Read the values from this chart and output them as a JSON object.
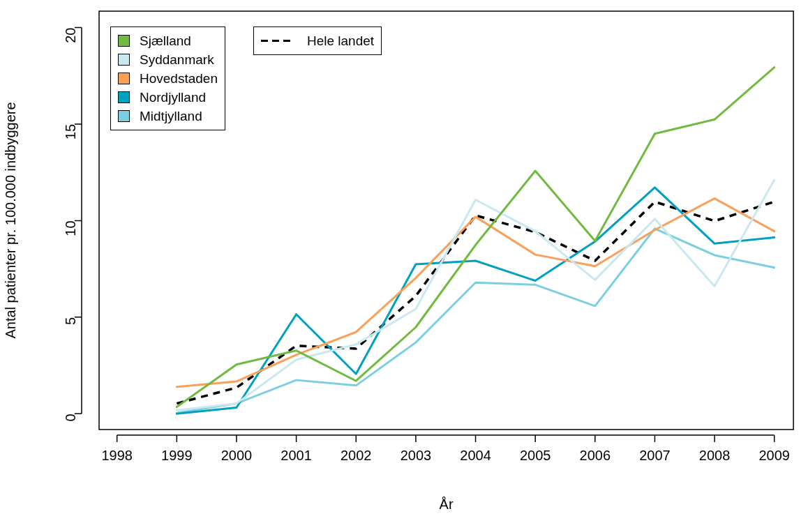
{
  "chart_data": {
    "type": "line",
    "xlabel": "År",
    "ylabel": "Antal patienter pr. 100.000 indbyggere",
    "x": [
      1999,
      2000,
      2001,
      2002,
      2003,
      2004,
      2005,
      2006,
      2007,
      2008,
      2009
    ],
    "xlim": [
      1997.7,
      2009.32
    ],
    "xticks": [
      1998,
      1999,
      2000,
      2001,
      2002,
      2003,
      2004,
      2005,
      2006,
      2007,
      2008,
      2009
    ],
    "ylim": [
      -0.82,
      20.85
    ],
    "yticks": [
      0,
      5,
      10,
      15,
      20
    ],
    "grid": false,
    "legend": "top left",
    "marker": "none",
    "series": [
      {
        "name": "Sjælland",
        "color": "#6fba3f",
        "values": [
          0.35,
          2.55,
          3.27,
          1.7,
          4.48,
          8.74,
          12.58,
          8.95,
          14.5,
          15.24,
          17.94
        ]
      },
      {
        "name": "Syddanmark",
        "color": "#c9e8f0",
        "values": [
          0.18,
          0.53,
          2.8,
          3.59,
          5.43,
          11.08,
          9.45,
          6.93,
          10.09,
          6.6,
          12.11
        ]
      },
      {
        "name": "Hovedstaden",
        "color": "#f9a05a",
        "values": [
          1.39,
          1.67,
          3.05,
          4.23,
          7.03,
          10.2,
          8.24,
          7.64,
          9.52,
          11.15,
          9.45
        ]
      },
      {
        "name": "Nordjylland",
        "color": "#00a0c0",
        "values": [
          0,
          0.32,
          5.15,
          2.06,
          7.74,
          7.92,
          6.89,
          8.92,
          11.72,
          8.81,
          9.13
        ]
      },
      {
        "name": "Midtjylland",
        "color": "#7ccfe0",
        "values": [
          0.04,
          0.53,
          1.74,
          1.46,
          3.69,
          6.79,
          6.68,
          5.58,
          9.59,
          8.21,
          7.57
        ]
      },
      {
        "name": "Hele landet",
        "color": "#000000",
        "line_style": "dashed",
        "values": [
          0.53,
          1.35,
          3.52,
          3.37,
          6.1,
          10.27,
          9.41,
          7.92,
          10.98,
          9.98,
          10.98
        ]
      }
    ]
  }
}
